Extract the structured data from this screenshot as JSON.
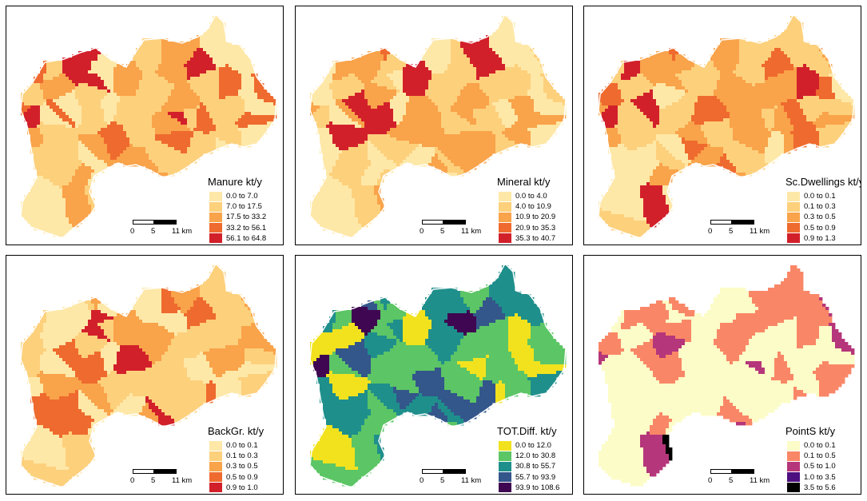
{
  "panels": [
    {
      "title": "Manure kt/y",
      "legend": [
        {
          "label": "0.0 to 7.0",
          "color": "#fee8a8"
        },
        {
          "label": "7.0 to 17.5",
          "color": "#fdd07c"
        },
        {
          "label": "17.5 to 33.2",
          "color": "#f9a34a"
        },
        {
          "label": "33.2 to 56.1",
          "color": "#ef6a2e"
        },
        {
          "label": "56.1 to 64.8",
          "color": "#d2202b"
        }
      ],
      "scalebar": {
        "zero": "0",
        "mid": "5",
        "end": "11 km"
      }
    },
    {
      "title": "Mineral kt/y",
      "legend": [
        {
          "label": "0.0 to 4.0",
          "color": "#fee8a8"
        },
        {
          "label": "4.0 to 10.9",
          "color": "#fdd07c"
        },
        {
          "label": "10.9 to 20.9",
          "color": "#f9a34a"
        },
        {
          "label": "20.9 to 35.3",
          "color": "#ef6a2e"
        },
        {
          "label": "35.3 to 40.7",
          "color": "#d2202b"
        }
      ],
      "scalebar": {
        "zero": "0",
        "mid": "5",
        "end": "11 km"
      }
    },
    {
      "title": "Sc.Dwellings kt/y",
      "legend": [
        {
          "label": "0.0 to 0.1",
          "color": "#fee8a8"
        },
        {
          "label": "0.1 to 0.3",
          "color": "#fdd07c"
        },
        {
          "label": "0.3 to 0.5",
          "color": "#f9a34a"
        },
        {
          "label": "0.5 to 0.9",
          "color": "#ef6a2e"
        },
        {
          "label": "0.9 to 1.3",
          "color": "#d2202b"
        }
      ],
      "scalebar": {
        "zero": "0",
        "mid": "5",
        "end": "11 km"
      }
    },
    {
      "title": "BackGr. kt/y",
      "legend": [
        {
          "label": "0.0 to 0.1",
          "color": "#fee8a8"
        },
        {
          "label": "0.1 to 0.3",
          "color": "#fdd07c"
        },
        {
          "label": "0.3 to 0.5",
          "color": "#f9a34a"
        },
        {
          "label": "0.5 to 0.9",
          "color": "#ef6a2e"
        },
        {
          "label": "0.9 to 1.0",
          "color": "#d2202b"
        }
      ],
      "scalebar": {
        "zero": "0",
        "mid": "5",
        "end": "11 km"
      }
    },
    {
      "title": "TOT.Diff. kt/y",
      "legend": [
        {
          "label": "0.0 to 12.0",
          "color": "#f2e21e"
        },
        {
          "label": "12.0 to 30.8",
          "color": "#5cc565"
        },
        {
          "label": "30.8 to 55.7",
          "color": "#1f8f8c"
        },
        {
          "label": "55.7 to 93.9",
          "color": "#33568b"
        },
        {
          "label": "93.9 to 108.6",
          "color": "#3f0651"
        }
      ],
      "scalebar": {
        "zero": "0",
        "mid": "5",
        "end": "11 km"
      }
    },
    {
      "title": "PointS kt/y",
      "legend": [
        {
          "label": "0.0 to 0.1",
          "color": "#fcfcc8"
        },
        {
          "label": "0.1 to 0.5",
          "color": "#f98767"
        },
        {
          "label": "0.5 to 1.0",
          "color": "#b5367a"
        },
        {
          "label": "1.0 to 3.5",
          "color": "#4d0f80"
        },
        {
          "label": "3.5 to 5.6",
          "color": "#000000"
        }
      ],
      "scalebar": {
        "zero": "0",
        "mid": "5",
        "end": "11 km"
      }
    }
  ]
}
